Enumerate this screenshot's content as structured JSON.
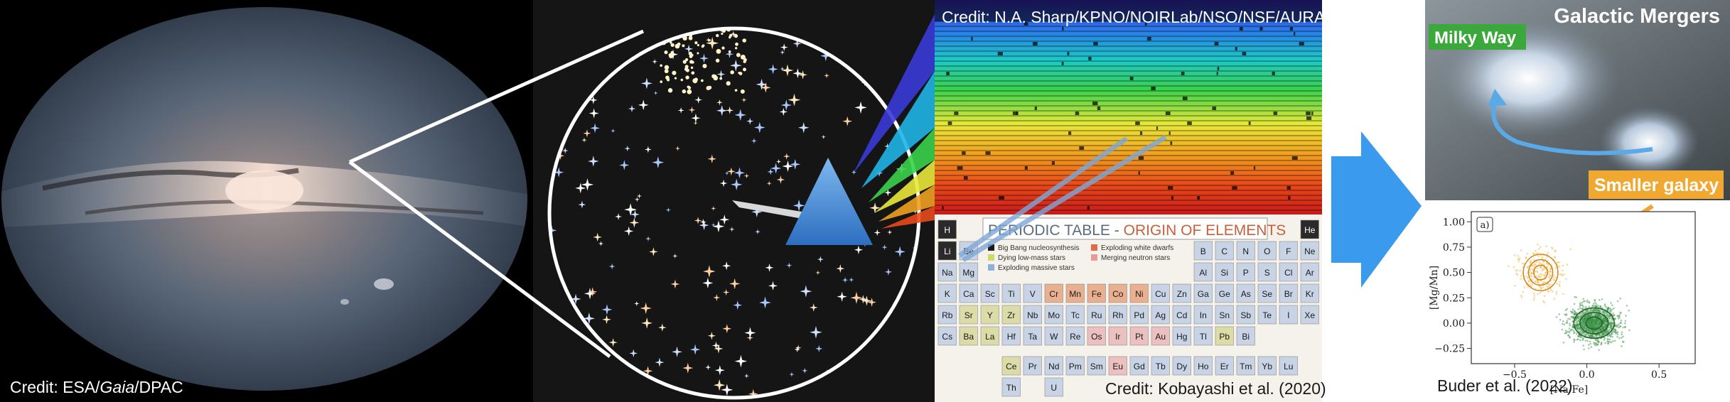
{
  "panels": {
    "gaia_credit_prefix": "Credit: ESA/",
    "gaia_credit_italic": "Gaia",
    "gaia_credit_suffix": "/DPAC",
    "spectrum_credit": "Credit: N.A. Sharp/KPNO/NOIRLab/NSO/NSF/AURA",
    "periodic_credit": "Credit: Kobayashi et al. (2020)",
    "mergers_title": "Galactic Mergers",
    "milky_way_label": "Milky Way",
    "smaller_galaxy_label": "Smaller galaxy",
    "plot_credit": "Buder et al. (2022)"
  },
  "periodic_table": {
    "title_main": "PERIODIC TABLE - ",
    "title_sub": "ORIGIN OF ELEMENTS",
    "legend": [
      {
        "label": "Big Bang nucleosynthesis",
        "color": "#1a1a1a"
      },
      {
        "label": "Exploding white dwarfs",
        "color": "#e06a4a"
      },
      {
        "label": "Dying low-mass stars",
        "color": "#cfd86a"
      },
      {
        "label": "Merging neutron stars",
        "color": "#e89a9a"
      },
      {
        "label": "Exploding massive stars",
        "color": "#8fb0d8"
      }
    ],
    "rows": [
      [
        "H",
        "",
        "",
        "",
        "",
        "",
        "",
        "",
        "",
        "",
        "",
        "",
        "",
        "",
        "",
        "",
        "",
        "He"
      ],
      [
        "Li",
        "Be",
        "",
        "",
        "",
        "",
        "",
        "",
        "",
        "",
        "",
        "",
        "B",
        "C",
        "N",
        "O",
        "F",
        "Ne"
      ],
      [
        "Na",
        "Mg",
        "",
        "",
        "",
        "",
        "",
        "",
        "",
        "",
        "",
        "",
        "Al",
        "Si",
        "P",
        "S",
        "Cl",
        "Ar"
      ],
      [
        "K",
        "Ca",
        "Sc",
        "Ti",
        "V",
        "Cr",
        "Mn",
        "Fe",
        "Co",
        "Ni",
        "Cu",
        "Zn",
        "Ga",
        "Ge",
        "As",
        "Se",
        "Br",
        "Kr"
      ],
      [
        "Rb",
        "Sr",
        "Y",
        "Zr",
        "Nb",
        "Mo",
        "Tc",
        "Ru",
        "Rh",
        "Pd",
        "Ag",
        "Cd",
        "In",
        "Sn",
        "Sb",
        "Te",
        "I",
        "Xe"
      ],
      [
        "Cs",
        "Ba",
        "La",
        "Hf",
        "Ta",
        "W",
        "Re",
        "Os",
        "Ir",
        "Pt",
        "Au",
        "Hg",
        "Tl",
        "Pb",
        "Bi",
        "",
        "",
        ""
      ]
    ],
    "lanthanides": [
      "Ce",
      "Pr",
      "Nd",
      "Pm",
      "Sm",
      "Eu",
      "Gd",
      "Tb",
      "Dy",
      "Ho",
      "Er",
      "Tm",
      "Yb",
      "Lu"
    ],
    "actinides": [
      "Th",
      "",
      "U"
    ]
  },
  "chart_data": {
    "type": "scatter",
    "panel_label": "a)",
    "xlabel": "[Na/Fe]",
    "ylabel": "[Mg/Mn]",
    "xticks": [
      "−0.5",
      "0.0",
      "0.5"
    ],
    "yticks": [
      "1.00",
      "0.75",
      "0.50",
      "0.25",
      "0.00",
      "−0.25"
    ],
    "xlim": [
      -0.8,
      0.75
    ],
    "ylim": [
      -0.4,
      1.1
    ],
    "series": [
      {
        "color": "#f0a830",
        "center": [
          -0.32,
          0.5
        ],
        "spread": [
          0.12,
          0.18
        ],
        "contour_levels": 3
      },
      {
        "color": "#2e8b3a",
        "center": [
          0.05,
          0.0
        ],
        "spread": [
          0.14,
          0.15
        ],
        "contour_levels": 3
      }
    ]
  }
}
